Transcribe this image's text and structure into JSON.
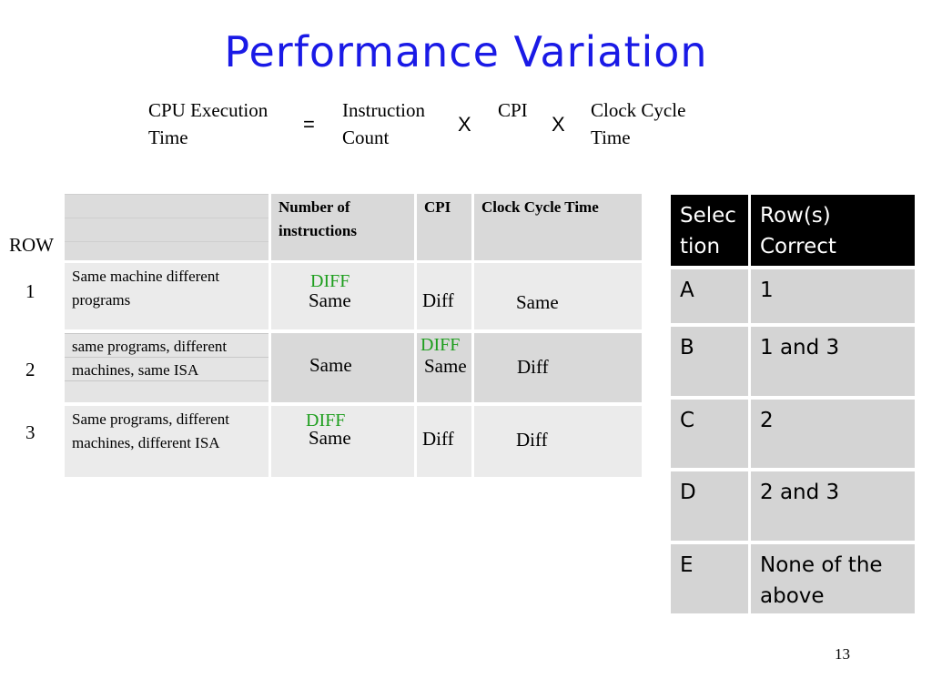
{
  "title": "Performance Variation",
  "formula": {
    "term1_line1": "CPU Execution",
    "term1_line2": "Time",
    "equals": "=",
    "term2_line1": "Instruction",
    "term2_line2": "Count",
    "times1": "X",
    "term3": "CPI",
    "times2": "X",
    "term4_line1": "Clock Cycle",
    "term4_line2": "Time"
  },
  "left_table": {
    "row_header": "ROW",
    "columns": [
      "Number of instructions",
      "CPI",
      "Clock Cycle Time"
    ],
    "rows": [
      {
        "num": "1",
        "desc": "Same machine different programs",
        "instr": "Same",
        "cpi": "Diff",
        "clock": "Same",
        "instr_mark": "DIFF",
        "cpi_mark": ""
      },
      {
        "num": "2",
        "desc": "same programs, different machines, same ISA",
        "instr": "Same",
        "cpi": "Same",
        "clock": "Diff",
        "instr_mark": "",
        "cpi_mark": "DIFF"
      },
      {
        "num": "3",
        "desc": "Same programs, different machines, different ISA",
        "instr": "Same",
        "cpi": "Diff",
        "clock": "Diff",
        "instr_mark": "DIFF",
        "cpi_mark": ""
      }
    ]
  },
  "right_table": {
    "headers": [
      "Selection",
      "Row(s) Correct"
    ],
    "rows": [
      {
        "sel": "A",
        "rows": "1"
      },
      {
        "sel": "B",
        "rows": "1 and 3"
      },
      {
        "sel": "C",
        "rows": "2"
      },
      {
        "sel": "D",
        "rows": "2 and 3"
      },
      {
        "sel": "E",
        "rows": "None of the above"
      }
    ]
  },
  "page_number": "13",
  "colors": {
    "title": "#1a1ae6",
    "annotation": "#1e9e1e",
    "header_bg": "#000000"
  }
}
